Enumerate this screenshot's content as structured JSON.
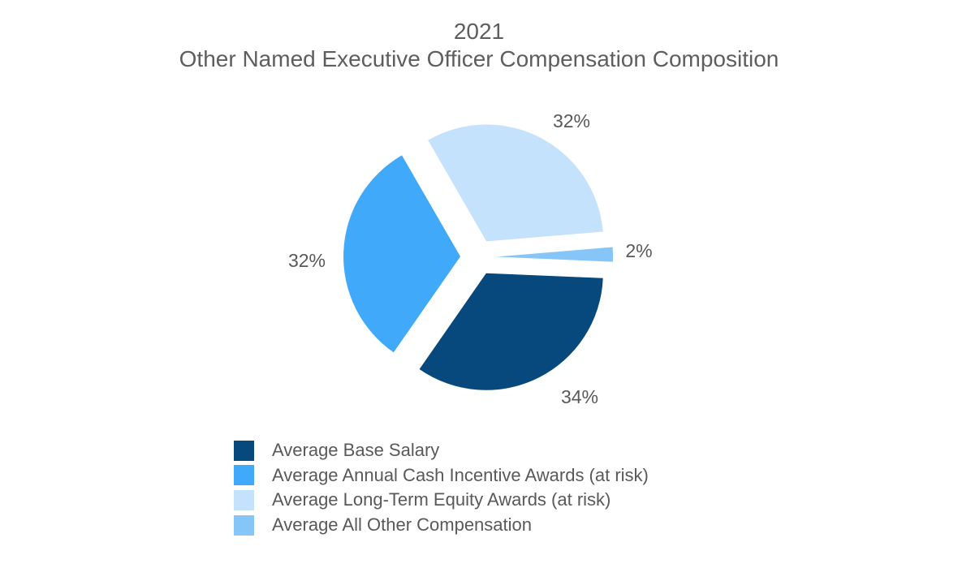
{
  "title": {
    "line1": "2021",
    "line2": "Other Named Executive Officer Compensation Composition"
  },
  "text_color": "#595959",
  "chart_data": {
    "type": "pie",
    "title": "2021 Other Named Executive Officer Compensation Composition",
    "exploded": true,
    "start_angle_deg": 92.4,
    "legend_position": "bottom-left",
    "slices": [
      {
        "label": "Average Base Salary",
        "value": 34,
        "percent_label": "34%",
        "color": "#07497D"
      },
      {
        "label": "Average Annual Cash Incentive Awards (at risk)",
        "value": 32,
        "percent_label": "32%",
        "color": "#41A9FA"
      },
      {
        "label": "Average Long-Term Equity Awards (at risk)",
        "value": 32,
        "percent_label": "32%",
        "color": "#C4E2FB"
      },
      {
        "label": "Average All Other Compensation",
        "value": 2,
        "percent_label": "2%",
        "color": "#85C5F8"
      }
    ]
  }
}
